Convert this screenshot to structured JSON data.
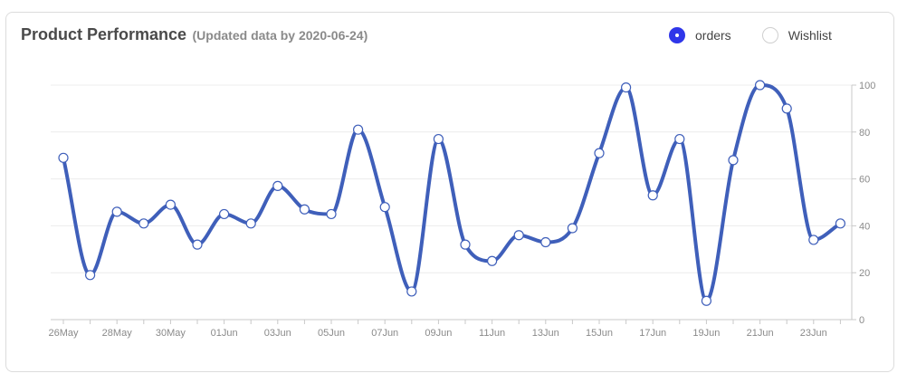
{
  "header": {
    "title": "Product Performance",
    "subtitle": "(Updated data by 2020-06-24)"
  },
  "legend": [
    {
      "label": "orders",
      "active": true,
      "color": "#2f36e9"
    },
    {
      "label": "Wishlist",
      "active": false,
      "color": "#ffffff"
    }
  ],
  "chart_data": {
    "type": "line",
    "x": [
      "26May",
      "27May",
      "28May",
      "29May",
      "30May",
      "31May",
      "01Jun",
      "02Jun",
      "03Jun",
      "04Jun",
      "05Jun",
      "06Jun",
      "07Jun",
      "08Jun",
      "09Jun",
      "10Jun",
      "11Jun",
      "12Jun",
      "13Jun",
      "14Jun",
      "15Jun",
      "16Jun",
      "17Jun",
      "18Jun",
      "19Jun",
      "20Jun",
      "21Jun",
      "22Jun",
      "23Jun",
      "24Jun"
    ],
    "x_tick_labels": [
      "26May",
      "28May",
      "30May",
      "01Jun",
      "03Jun",
      "05Jun",
      "07Jun",
      "09Jun",
      "11Jun",
      "13Jun",
      "15Jun",
      "17Jun",
      "19Jun",
      "21Jun",
      "23Jun"
    ],
    "series": [
      {
        "name": "orders",
        "color": "#3f5fba",
        "values": [
          69,
          19,
          46,
          41,
          49,
          32,
          45,
          41,
          57,
          47,
          45,
          81,
          48,
          12,
          77,
          32,
          25,
          36,
          33,
          39,
          71,
          99,
          53,
          77,
          8,
          68,
          100,
          90,
          34,
          41
        ]
      }
    ],
    "ylim": [
      0,
      100
    ],
    "yticks": [
      0,
      20,
      40,
      60,
      80,
      100
    ],
    "y_axis_position": "right",
    "grid": true
  }
}
